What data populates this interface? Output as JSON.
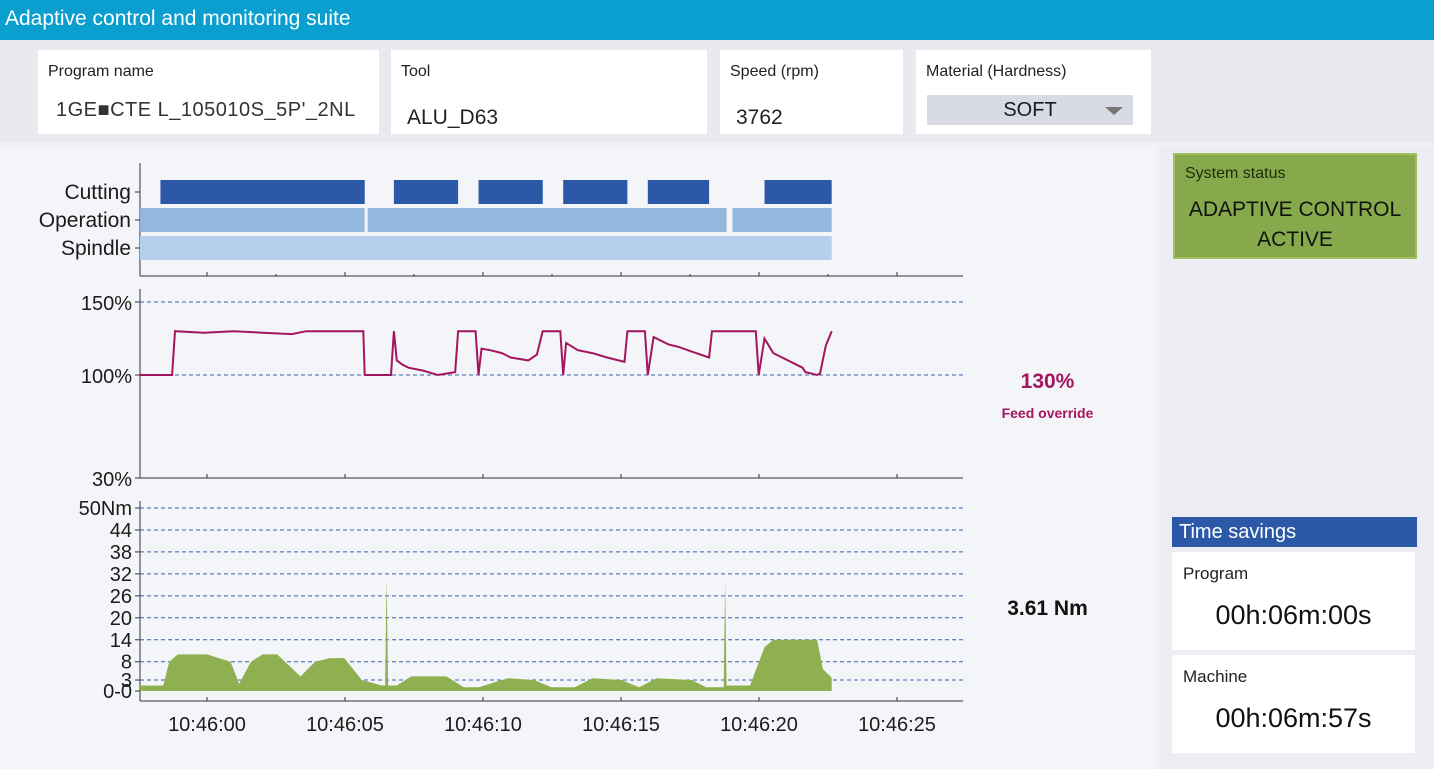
{
  "app": {
    "title": "Adaptive control and monitoring suite"
  },
  "fields": {
    "program": {
      "label": "Program name",
      "value": "1GE■CTE L_105010S_5P'_2NL"
    },
    "tool": {
      "label": "Tool",
      "value": "ALU_D63"
    },
    "speed": {
      "label": "Speed (rpm)",
      "value": "3762"
    },
    "material": {
      "label": "Material (Hardness)",
      "value": "SOFT"
    }
  },
  "status": {
    "label": "System status",
    "line1": "ADAPTIVE CONTROL",
    "line2": "ACTIVE"
  },
  "readouts": {
    "feed": {
      "value": "130%",
      "label": "Feed override"
    },
    "torque": {
      "value": "3.61 Nm"
    }
  },
  "time_savings": {
    "title": "Time savings",
    "program": {
      "label": "Program",
      "value": "00h:06m:00s"
    },
    "machine": {
      "label": "Machine",
      "value": "00h:06m:57s"
    }
  },
  "colors": {
    "accent": "#0a9fcf",
    "status_active": "#86a94b",
    "cutting": "#2b59a8",
    "operation": "#93b8dd",
    "spindle": "#b6cfea",
    "feed_line": "#a4155f",
    "torque_fill": "#8fb050",
    "header_blue": "#2b59a8"
  },
  "chart_data": [
    {
      "type": "timeline",
      "lanes": [
        {
          "name": "Cutting",
          "segments": [
            [
              0.0,
              7.0
            ],
            [
              8.0,
              10.2
            ],
            [
              10.9,
              13.1
            ],
            [
              13.8,
              16.0
            ],
            [
              16.7,
              18.8
            ],
            [
              20.7,
              23.0
            ]
          ]
        },
        {
          "name": "Operation",
          "segments": [
            [
              -0.7,
              7.0
            ],
            [
              7.1,
              19.4
            ],
            [
              19.6,
              23.0
            ]
          ]
        },
        {
          "name": "Spindle",
          "segments": [
            [
              -0.7,
              23.0
            ]
          ]
        }
      ],
      "x_start": "10:45:58.3",
      "xlim": [
        -0.7,
        23.0
      ]
    },
    {
      "type": "line",
      "series": [
        {
          "name": "",
          "x": [
            -0.7,
            0.4,
            0.5,
            1.5,
            2.5,
            3.5,
            4.5,
            5.0,
            6.95,
            7.0,
            7.9,
            8.0,
            8.1,
            8.3,
            8.5,
            9.0,
            9.5,
            10.1,
            10.2,
            10.8,
            10.9,
            11.0,
            11.3,
            11.7,
            12.0,
            12.6,
            12.9,
            13.1,
            13.2,
            13.7,
            13.8,
            13.9,
            14.3,
            14.8,
            15.3,
            15.9,
            16.0,
            16.6,
            16.7,
            16.9,
            17.4,
            17.8,
            18.2,
            18.8,
            18.9,
            20.4,
            20.5,
            20.7,
            21.0,
            21.5,
            22.0,
            22.1,
            22.5,
            22.6,
            22.8,
            23.0
          ],
          "y": [
            100,
            100,
            130,
            129,
            130,
            129,
            128,
            130,
            130,
            100,
            100,
            130,
            110,
            107,
            105,
            103,
            100,
            102,
            130,
            130,
            100,
            118,
            117,
            115,
            112,
            110,
            114,
            130,
            130,
            130,
            100,
            122,
            117,
            115,
            112,
            109,
            130,
            130,
            100,
            126,
            121,
            119,
            116,
            112,
            130,
            130,
            100,
            125,
            115,
            110,
            105,
            102,
            100,
            101,
            120,
            130
          ]
        }
      ],
      "yticks": [
        "150%",
        "100%",
        "30%"
      ],
      "ylim": [
        30,
        150
      ],
      "ylabel": "",
      "xlabel": ""
    },
    {
      "type": "area",
      "series": [
        {
          "name": "",
          "x": [
            -0.7,
            0.1,
            0.3,
            0.6,
            1.6,
            2.4,
            2.7,
            3.1,
            3.5,
            4.0,
            4.8,
            5.3,
            5.8,
            6.3,
            6.9,
            7.6,
            7.7,
            7.75,
            7.8,
            8.1,
            8.6,
            9.8,
            10.4,
            10.9,
            11.9,
            12.8,
            13.4,
            14.2,
            14.8,
            15.8,
            16.4,
            17.0,
            18.2,
            18.7,
            19.2,
            19.3,
            19.35,
            19.4,
            20.2,
            20.7,
            21.0,
            22.5,
            22.7,
            23.0
          ],
          "y": [
            1.5,
            1.5,
            8,
            10,
            10,
            8,
            2,
            8,
            10,
            10,
            4,
            8,
            9,
            9,
            3,
            1.5,
            1.5,
            31,
            1.5,
            1.5,
            4,
            4,
            1,
            1,
            3.5,
            3,
            1,
            1,
            3.5,
            3,
            1,
            3.5,
            3,
            1,
            1,
            1,
            30,
            1.5,
            1.5,
            12,
            14,
            14,
            6,
            3.61
          ]
        }
      ],
      "yticks": [
        "50Nm",
        "44",
        "38",
        "32",
        "26",
        "20",
        "14",
        "8",
        "3",
        "0-0"
      ],
      "ylim": [
        0,
        50
      ],
      "xticks": [
        "10:46:00",
        "10:46:05",
        "10:46:10",
        "10:46:15",
        "10:46:20",
        "10:46:25"
      ],
      "xtick_values": [
        0,
        5,
        10,
        15,
        20,
        25
      ],
      "xlim": [
        -0.7,
        27.5
      ],
      "ylabel": "",
      "xlabel": ""
    }
  ]
}
